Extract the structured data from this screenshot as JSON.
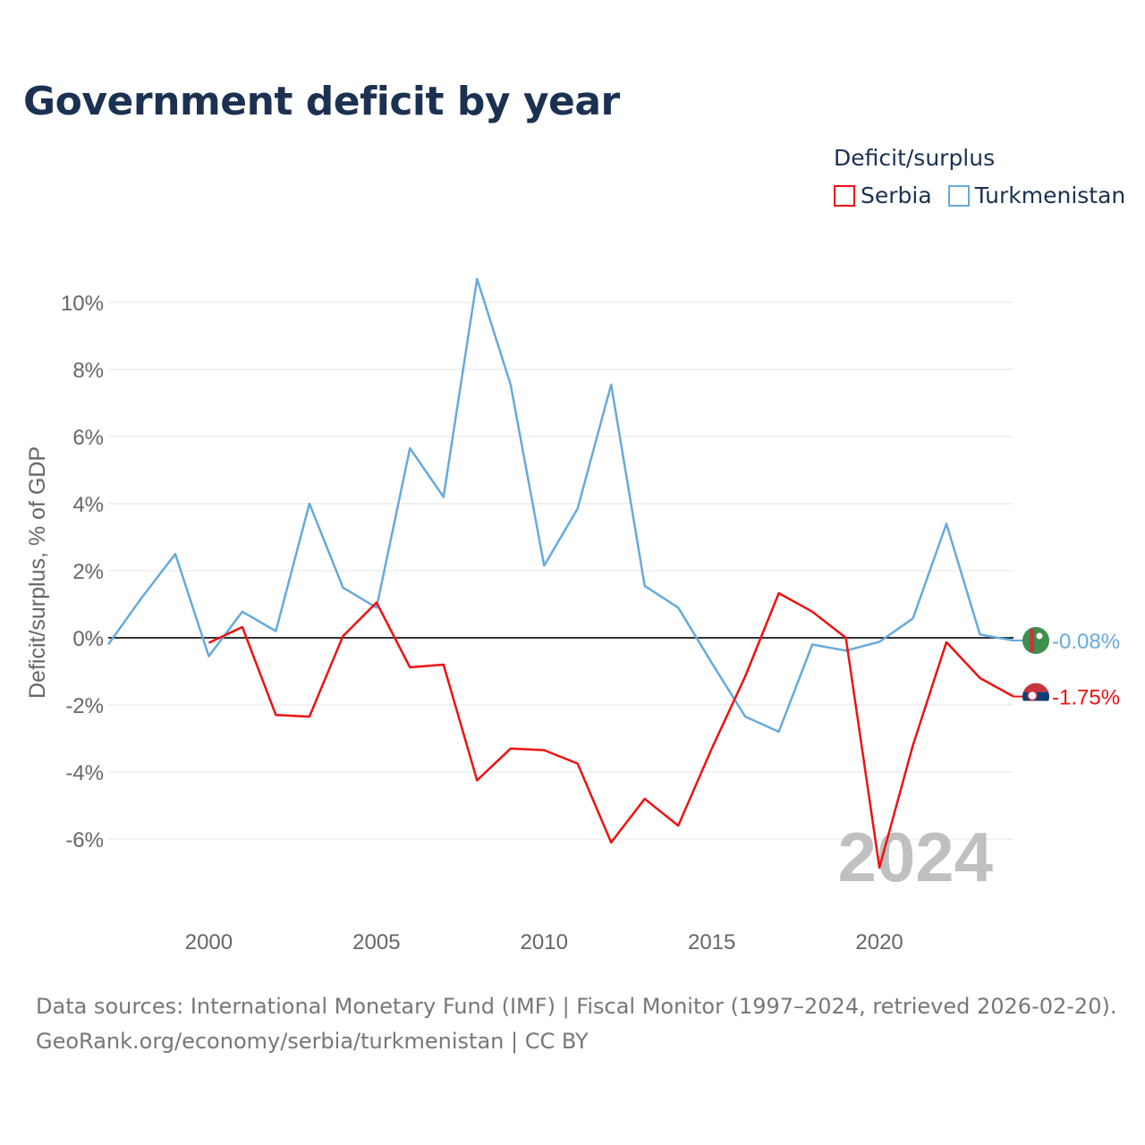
{
  "title": "Government deficit by year",
  "legend": {
    "title": "Deficit/surplus",
    "items": [
      {
        "name": "Serbia",
        "color": "#ee1111"
      },
      {
        "name": "Turkmenistan",
        "color": "#66aadd"
      }
    ]
  },
  "chart_data": {
    "type": "line",
    "title": "Government deficit by year",
    "xlabel": "",
    "ylabel": "Deficit/surplus, % of GDP",
    "xlim": [
      1997,
      2024
    ],
    "ylim": [
      -7.7,
      11.0
    ],
    "x_ticks": [
      2000,
      2005,
      2010,
      2015,
      2020
    ],
    "y_ticks": [
      -6,
      -4,
      -2,
      0,
      2,
      4,
      6,
      8,
      10
    ],
    "y_tick_labels": [
      "-6%",
      "-4%",
      "-2%",
      "0%",
      "2%",
      "4%",
      "6%",
      "8%",
      "10%"
    ],
    "x_tick_labels": [
      "2000",
      "2005",
      "2010",
      "2015",
      "2020"
    ],
    "zero_line": true,
    "grid": true,
    "year_watermark": "2024",
    "series": [
      {
        "name": "Turkmenistan",
        "color": "#66aadd",
        "x": [
          1997,
          1998,
          1999,
          2000,
          2001,
          2002,
          2003,
          2004,
          2005,
          2006,
          2007,
          2008,
          2009,
          2010,
          2011,
          2012,
          2013,
          2014,
          2015,
          2016,
          2017,
          2018,
          2019,
          2020,
          2021,
          2022,
          2023,
          2024
        ],
        "values": [
          -0.2,
          1.2,
          2.5,
          -0.55,
          0.78,
          0.2,
          4.0,
          1.5,
          0.9,
          5.65,
          4.2,
          10.7,
          7.55,
          2.15,
          3.85,
          7.55,
          1.55,
          0.9,
          -0.75,
          -2.35,
          -2.8,
          -0.2,
          -0.38,
          -0.12,
          0.58,
          3.4,
          0.1,
          -0.08
        ],
        "end_label": "-0.08%"
      },
      {
        "name": "Serbia",
        "color": "#ee1111",
        "x": [
          2000,
          2001,
          2002,
          2003,
          2004,
          2005,
          2006,
          2007,
          2008,
          2009,
          2010,
          2011,
          2012,
          2013,
          2014,
          2015,
          2016,
          2017,
          2018,
          2019,
          2020,
          2021,
          2022,
          2023,
          2024
        ],
        "values": [
          -0.15,
          0.32,
          -2.3,
          -2.35,
          0.05,
          1.05,
          -0.88,
          -0.8,
          -4.25,
          -3.3,
          -3.35,
          -3.75,
          -6.1,
          -4.8,
          -5.6,
          -3.3,
          -1.15,
          1.33,
          0.78,
          0.0,
          -6.85,
          -3.2,
          -0.13,
          -1.2,
          -1.75
        ],
        "end_label": "-1.75%"
      }
    ]
  },
  "source": {
    "line1": "Data sources: International Monetary Fund (IMF) | Fiscal Monitor (1997–2024, retrieved 2026-02-20).",
    "line2": "GeoRank.org/economy/serbia/turkmenistan | CC BY"
  }
}
